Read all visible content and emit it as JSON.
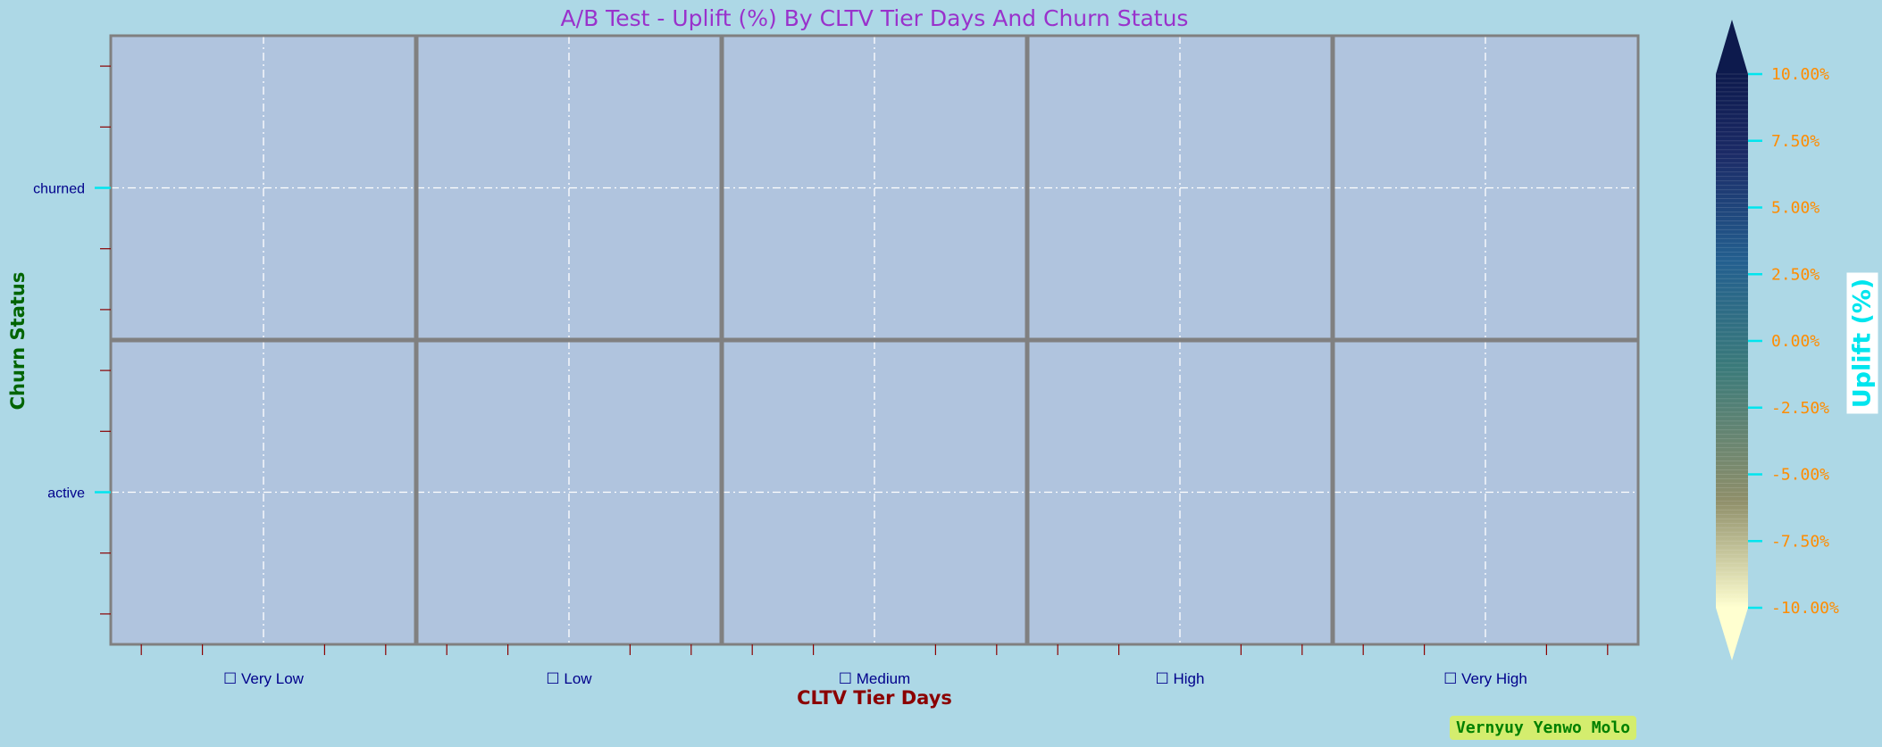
{
  "chart_data": {
    "type": "heatmap",
    "title": "A/B Test - Uplift (%) By CLTV Tier Days And Churn Status",
    "xlabel": "CLTV Tier Days",
    "ylabel": "Churn Status",
    "x_categories": [
      "☐ Very Low",
      "☐ Low",
      "☐ Medium",
      "☐ High",
      "☐ Very High"
    ],
    "y_categories": [
      "churned",
      "active"
    ],
    "values": [
      [
        null,
        null,
        null,
        null,
        null
      ],
      [
        null,
        null,
        null,
        null,
        null
      ]
    ],
    "colorbar": {
      "label": "Uplift (%)",
      "ticks": [
        "10.00%",
        "7.50%",
        "5.00%",
        "2.50%",
        "0.00%",
        "-2.50%",
        "-5.00%",
        "-7.50%",
        "-10.00%"
      ],
      "range": [
        -10,
        10
      ],
      "extend": "both",
      "colors": [
        "#ffffd0",
        "#8f8f6a",
        "#3a7a7a",
        "#235f8f",
        "#1b2a66",
        "#0d1a4d"
      ]
    },
    "grid": true,
    "colors": {
      "background": "#add8e6",
      "cell": "#b0c4de",
      "cell_border": "#808080",
      "title": "#9932cc",
      "xlabel": "#8b0000",
      "ylabel": "#006400",
      "tick_label": "#00008b",
      "colorbar_tick": "#ff8c00",
      "colorbar_label": "#00e5ee"
    }
  },
  "watermark": "Vernyuy Yenwo Molo"
}
